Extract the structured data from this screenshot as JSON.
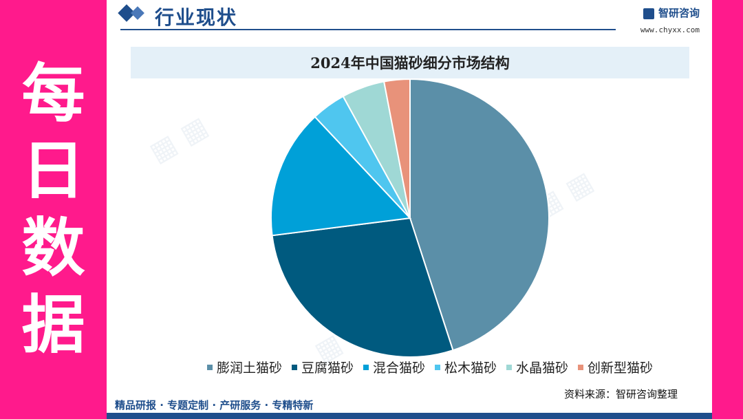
{
  "side_banner": {
    "chars": [
      "每",
      "日",
      "数",
      "据"
    ]
  },
  "header": {
    "section_title": "行业现状",
    "brand_name": "智研咨询",
    "brand_url": "www.chyxx.com"
  },
  "footer": {
    "services": "精品研报 · 专题定制 · 产研服务 · 专精特新",
    "source": "资料来源：智研咨询整理"
  },
  "colors": {
    "banner": "#ff1a8c",
    "brand_blue": "#1f4e8c"
  },
  "chart_data": {
    "type": "pie",
    "title": "2024年中国猫砂细分市场结构",
    "legend_position": "bottom",
    "categories": [
      "膨润土猫砂",
      "豆腐猫砂",
      "混合猫砂",
      "松木猫砂",
      "水晶猫砂",
      "创新型猫砂"
    ],
    "values": [
      45,
      28,
      15,
      4,
      5,
      3
    ],
    "colors": [
      "#5b8fa8",
      "#005a7f",
      "#00a0d8",
      "#4fc6ef",
      "#9fd8d5",
      "#e8927a"
    ]
  }
}
